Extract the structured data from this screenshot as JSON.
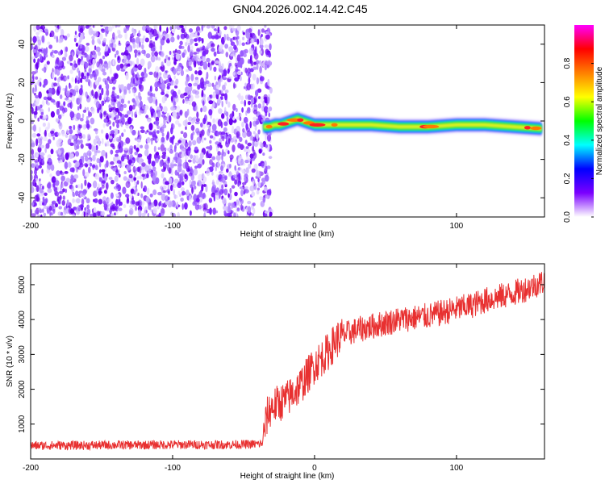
{
  "title": "GN04.2026.002.14.42.C45",
  "chart_data": [
    {
      "type": "heatmap",
      "title": "GN04.2026.002.14.42.C45",
      "xlabel": "Height of straight line (km)",
      "ylabel": "Frequency (Hz)",
      "xlim": [
        -200,
        162
      ],
      "ylim": [
        -50,
        50
      ],
      "xticks": [
        -200,
        -100,
        0,
        100
      ],
      "yticks": [
        -40,
        -20,
        0,
        20,
        40
      ],
      "noise_region_x": [
        -200,
        -34
      ],
      "signal_ridge": {
        "x": [
          -36,
          -32,
          -28,
          -24,
          -20,
          -16,
          -12,
          -8,
          -4,
          0,
          20,
          40,
          60,
          80,
          100,
          120,
          140,
          160
        ],
        "freq": [
          -3,
          -3,
          -2,
          -2,
          -1,
          0,
          1,
          0,
          -1,
          -2,
          -2,
          -2,
          -3,
          -3,
          -2,
          -2,
          -3,
          -4
        ]
      },
      "colorbar": {
        "label": "Normalized spectral amplitude",
        "range": [
          0,
          1
        ],
        "ticks": [
          "0.0",
          "0.2",
          "0.4",
          "0.6",
          "0.8"
        ],
        "colors": [
          "#ffffff",
          "#7b00ff",
          "#0000ff",
          "#00ffff",
          "#00ff00",
          "#ffff00",
          "#ff8000",
          "#ff0000",
          "#ff00ff"
        ]
      }
    },
    {
      "type": "line",
      "xlabel": "Height of straight line (km)",
      "ylabel": "SNR (10 * v/v)",
      "xlim": [
        -200,
        162
      ],
      "ylim": [
        0,
        5600
      ],
      "xticks": [
        -200,
        -100,
        0,
        100
      ],
      "yticks": [
        1000,
        2000,
        3000,
        4000,
        5000
      ],
      "series": [
        {
          "name": "SNR",
          "color": "#e83030",
          "x": [
            -200,
            -180,
            -160,
            -140,
            -120,
            -100,
            -80,
            -60,
            -45,
            -37,
            -35,
            -33,
            -30,
            -25,
            -20,
            -15,
            -10,
            -5,
            0,
            5,
            10,
            15,
            20,
            30,
            40,
            50,
            60,
            70,
            80,
            90,
            100,
            110,
            120,
            130,
            140,
            150,
            162
          ],
          "y": [
            380,
            390,
            390,
            400,
            400,
            410,
            410,
            410,
            420,
            430,
            900,
            1300,
            1500,
            1600,
            1700,
            1900,
            2100,
            2400,
            2700,
            2900,
            3100,
            3400,
            3550,
            3700,
            3800,
            3900,
            4000,
            4050,
            4100,
            4200,
            4300,
            4400,
            4550,
            4650,
            4750,
            4900,
            5100
          ]
        }
      ]
    }
  ],
  "colors": {
    "line": "#e83030",
    "noise": "#7b00ff"
  }
}
